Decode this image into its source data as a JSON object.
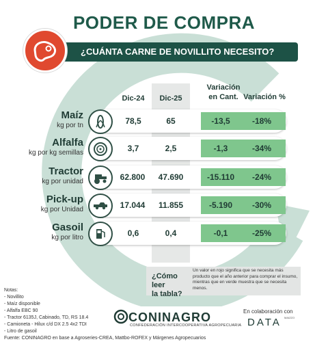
{
  "title": "PODER DE COMPRA",
  "question": "¿CUÁNTA CARNE DE NOVILLITO NECESITO?",
  "headers": {
    "col1": "Dic-24",
    "col2": "Dic-25",
    "col3_line1": "Variación",
    "col3_line2": "en Cant.",
    "col4": "Variación %"
  },
  "rows": [
    {
      "name": "Maíz",
      "unit": "kg por tn",
      "icon": "corn-icon",
      "dic24": "78,5",
      "dic25": "65",
      "var_cant": "-13,5",
      "var_pct": "-18%"
    },
    {
      "name": "Alfalfa",
      "unit": "kg por kg semillas",
      "icon": "hay-bale-icon",
      "dic24": "3,7",
      "dic25": "2,5",
      "var_cant": "-1,3",
      "var_pct": "-34%"
    },
    {
      "name": "Tractor",
      "unit": "kg por unidad",
      "icon": "tractor-icon",
      "dic24": "62.800",
      "dic25": "47.690",
      "var_cant": "-15.110",
      "var_pct": "-24%"
    },
    {
      "name": "Pick-up",
      "unit": "kg por Unidad",
      "icon": "pickup-truck-icon",
      "dic24": "17.044",
      "dic25": "11.855",
      "var_cant": "-5.190",
      "var_pct": "-30%"
    },
    {
      "name": "Gasoil",
      "unit": "kg por litro",
      "icon": "fuel-pump-icon",
      "dic24": "0,6",
      "dic25": "0,4",
      "var_cant": "-0,1",
      "var_pct": "-25%"
    }
  ],
  "how_to_read": {
    "question_line1": "¿Cómo leer",
    "question_line2": "la tabla?",
    "text": "Un valor en rojo significa que se necesita más producto que el año anterior para comprar el insumo, mientras que en verde muestra que se necesita menos."
  },
  "notes": [
    "Notas:",
    "- Novillito",
    "- Maíz disponible",
    "- Alfalfa EBC 90",
    "- Tractor 6135J, Cabinado, TD, RS 18.4",
    "- Camioneta - Hilux c/d DX 2.5 4x2 TDI",
    "- Litro de gasoil",
    "Fuente: CONINAGRO en base a Agroseries-CREA, Mattbo-ROFEX y Márgenes Agropecuarios"
  ],
  "footer": {
    "brand": "CONINAGRO",
    "brand_sub": "CONFEDERACIÓN INTERCOOPERATIVA AGROPECUARIA",
    "collab": "En colaboración con",
    "partner": "DATA",
    "partner_sub": "MAIZZO"
  },
  "colors": {
    "dark_green": "#1d5246",
    "green_cell": "#7fc68d",
    "logo_red": "#e0492f",
    "ring": "#c9dfd6"
  }
}
